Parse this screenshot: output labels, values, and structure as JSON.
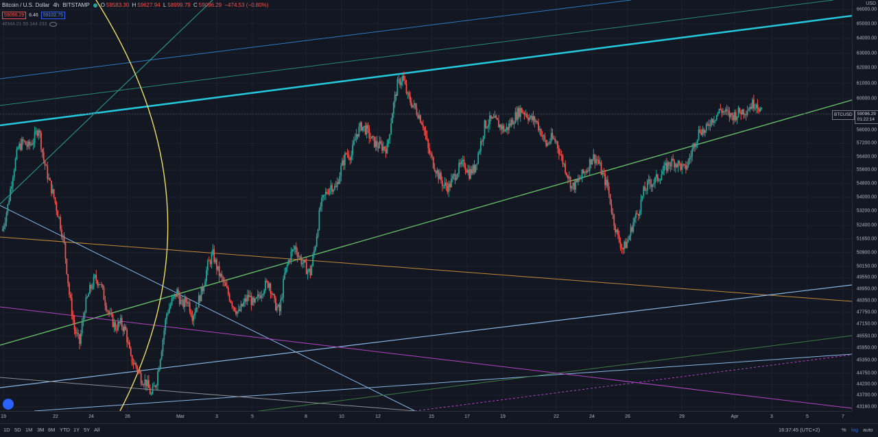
{
  "legend": {
    "symbol": "Bitcoin / U.S. Dollar",
    "interval": "4h",
    "exchange": "BITSTAMP",
    "ohlc": {
      "o_label": "O",
      "o": "59583.30",
      "h_label": "H",
      "h": "59627.94",
      "l_label": "L",
      "l": "58999.79",
      "c_label": "C",
      "c": "59096.29",
      "change": "−474.53 (−0.80%)"
    },
    "bid": "59096.29",
    "spread": "6.46",
    "ask": "59102.75",
    "indicator": "4EMA 21 55 144 233"
  },
  "price_axis": {
    "currency": "USD",
    "ticks": [
      "66000.00",
      "65000.00",
      "64000.00",
      "63000.00",
      "62000.00",
      "61000.00",
      "60000.00",
      "59000.00",
      "58000.00",
      "57200.00",
      "56400.00",
      "55600.00",
      "54800.00",
      "54000.00",
      "53200.00",
      "52400.00",
      "51650.00",
      "50900.00",
      "50150.00",
      "49550.00",
      "48950.00",
      "48350.00",
      "47750.00",
      "47150.00",
      "46550.00",
      "45950.00",
      "45350.00",
      "44750.00",
      "44200.00",
      "43700.00",
      "43160.00"
    ]
  },
  "price_tag": {
    "symbol": "BTCUSD",
    "price": "59096.29",
    "countdown": "01:22:14"
  },
  "time_axis": {
    "labels": [
      "19",
      "22",
      "24",
      "26",
      "Mar",
      "3",
      "5",
      "8",
      "10",
      "12",
      "15",
      "17",
      "19",
      "22",
      "24",
      "26",
      "29",
      "Apr",
      "3",
      "5",
      "7"
    ]
  },
  "bottom_bar": {
    "timeframes": [
      "1D",
      "5D",
      "1M",
      "3M",
      "6M",
      "YTD",
      "1Y",
      "5Y",
      "All"
    ],
    "clock": "16:37:45 (UTC+2)",
    "percent": "%",
    "log": "log",
    "auto": "auto"
  },
  "colors": {
    "up": "#26a69a",
    "down": "#ef5350",
    "background": "#131722",
    "grid": "#1e222d"
  },
  "chart_data": {
    "type": "candlestick",
    "title": "Bitcoin / U.S. Dollar",
    "interval": "4h",
    "ylim": [
      43000,
      66500
    ],
    "scale": "log",
    "x": [
      "19",
      "22",
      "24",
      "26",
      "Mar",
      "3",
      "5",
      "8",
      "10",
      "12",
      "15",
      "17",
      "19",
      "22",
      "24",
      "26",
      "29",
      "Apr",
      "3",
      "5",
      "7"
    ],
    "close_path": [
      [
        0,
        52200
      ],
      [
        4,
        53500
      ],
      [
        8,
        55400
      ],
      [
        12,
        56900
      ],
      [
        16,
        57300
      ],
      [
        20,
        57000
      ],
      [
        24,
        57400
      ],
      [
        28,
        58200
      ],
      [
        32,
        56200
      ],
      [
        36,
        55000
      ],
      [
        40,
        54000
      ],
      [
        44,
        52800
      ],
      [
        48,
        51300
      ],
      [
        52,
        48700
      ],
      [
        56,
        46900
      ],
      [
        60,
        46200
      ],
      [
        64,
        48000
      ],
      [
        68,
        48900
      ],
      [
        72,
        49500
      ],
      [
        76,
        49300
      ],
      [
        80,
        48300
      ],
      [
        84,
        47500
      ],
      [
        88,
        47000
      ],
      [
        92,
        47200
      ],
      [
        96,
        46800
      ],
      [
        100,
        45400
      ],
      [
        104,
        45100
      ],
      [
        108,
        44500
      ],
      [
        112,
        44300
      ],
      [
        116,
        43700
      ],
      [
        120,
        44400
      ],
      [
        124,
        46000
      ],
      [
        128,
        47700
      ],
      [
        132,
        48300
      ],
      [
        136,
        48800
      ],
      [
        140,
        48100
      ],
      [
        144,
        48400
      ],
      [
        148,
        47600
      ],
      [
        152,
        48200
      ],
      [
        156,
        49000
      ],
      [
        160,
        50200
      ],
      [
        164,
        50800
      ],
      [
        168,
        49900
      ],
      [
        172,
        49300
      ],
      [
        176,
        48700
      ],
      [
        180,
        48100
      ],
      [
        184,
        47700
      ],
      [
        188,
        48200
      ],
      [
        192,
        48600
      ],
      [
        196,
        48100
      ],
      [
        200,
        48600
      ],
      [
        204,
        49100
      ],
      [
        208,
        49300
      ],
      [
        212,
        48200
      ],
      [
        216,
        47800
      ],
      [
        220,
        49700
      ],
      [
        224,
        50700
      ],
      [
        228,
        51200
      ],
      [
        232,
        50600
      ],
      [
        236,
        50100
      ],
      [
        240,
        49800
      ],
      [
        244,
        51400
      ],
      [
        248,
        53500
      ],
      [
        252,
        54200
      ],
      [
        256,
        54700
      ],
      [
        260,
        54500
      ],
      [
        264,
        55700
      ],
      [
        268,
        56600
      ],
      [
        272,
        56500
      ],
      [
        276,
        57800
      ],
      [
        280,
        58300
      ],
      [
        284,
        58000
      ],
      [
        288,
        57400
      ],
      [
        292,
        57100
      ],
      [
        296,
        57000
      ],
      [
        300,
        56900
      ],
      [
        304,
        59200
      ],
      [
        308,
        60900
      ],
      [
        312,
        61400
      ],
      [
        316,
        60100
      ],
      [
        320,
        59600
      ],
      [
        324,
        59100
      ],
      [
        328,
        58400
      ],
      [
        332,
        56800
      ],
      [
        336,
        56000
      ],
      [
        340,
        55300
      ],
      [
        344,
        54700
      ],
      [
        348,
        54600
      ],
      [
        352,
        55200
      ],
      [
        356,
        55700
      ],
      [
        360,
        56000
      ],
      [
        364,
        55400
      ],
      [
        368,
        55700
      ],
      [
        372,
        56900
      ],
      [
        376,
        58300
      ],
      [
        380,
        58600
      ],
      [
        384,
        58600
      ],
      [
        388,
        58300
      ],
      [
        392,
        58000
      ],
      [
        396,
        58400
      ],
      [
        400,
        58900
      ],
      [
        404,
        59300
      ],
      [
        408,
        59100
      ],
      [
        412,
        58700
      ],
      [
        416,
        58600
      ],
      [
        420,
        57900
      ],
      [
        424,
        57100
      ],
      [
        428,
        57500
      ],
      [
        432,
        57300
      ],
      [
        436,
        56300
      ],
      [
        440,
        55500
      ],
      [
        444,
        54600
      ],
      [
        448,
        54800
      ],
      [
        452,
        55300
      ],
      [
        456,
        55700
      ],
      [
        460,
        56400
      ],
      [
        464,
        56200
      ],
      [
        468,
        55300
      ],
      [
        472,
        54600
      ],
      [
        476,
        52900
      ],
      [
        480,
        51700
      ],
      [
        484,
        51100
      ],
      [
        488,
        51600
      ],
      [
        492,
        52600
      ],
      [
        496,
        53200
      ],
      [
        500,
        54300
      ],
      [
        504,
        54800
      ],
      [
        508,
        54900
      ],
      [
        512,
        55200
      ],
      [
        516,
        55600
      ],
      [
        520,
        56000
      ],
      [
        524,
        56100
      ],
      [
        528,
        55900
      ],
      [
        532,
        55600
      ],
      [
        536,
        56300
      ],
      [
        540,
        57300
      ],
      [
        544,
        58100
      ],
      [
        548,
        57900
      ],
      [
        552,
        58600
      ],
      [
        556,
        58900
      ],
      [
        560,
        59300
      ],
      [
        564,
        59100
      ],
      [
        568,
        58900
      ],
      [
        572,
        59000
      ],
      [
        576,
        59200
      ],
      [
        580,
        59300
      ],
      [
        584,
        59600
      ],
      [
        588,
        59800
      ],
      [
        592,
        59096
      ]
    ],
    "last_close": 59096.29
  }
}
